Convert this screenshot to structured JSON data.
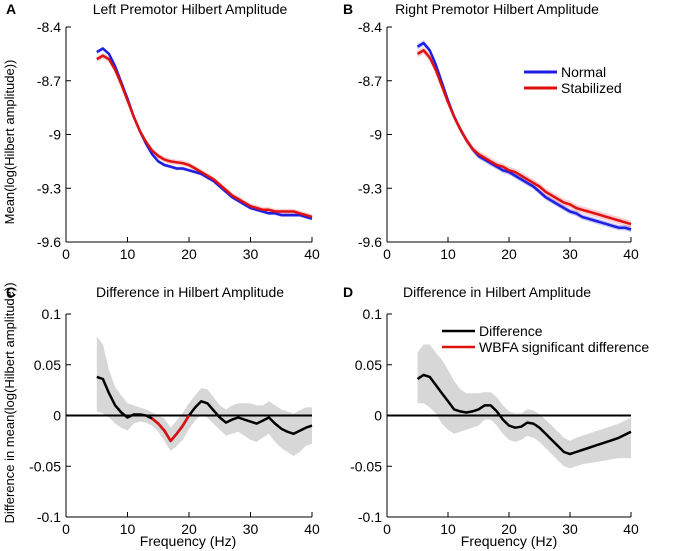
{
  "chart_data": [
    {
      "panel_letter": "A",
      "type": "line",
      "title": "Left Premotor Hilbert Amplitude",
      "xlabel": "",
      "ylabel": "Mean(log(Hilbert amplitude))",
      "xlim": [
        0,
        40
      ],
      "ylim": [
        -9.6,
        -8.4
      ],
      "xticks": [
        0,
        10,
        20,
        30,
        40
      ],
      "yticks": [
        -8.4,
        -8.7,
        -9,
        -9.3,
        -9.6
      ],
      "ytick_labels": [
        "-8.4",
        "-8.7",
        "-9",
        "-9.3",
        "-9.6"
      ],
      "series": [
        {
          "name": "Normal",
          "color": "#1f1fe0",
          "band": 0.01,
          "x": [
            5,
            6,
            7,
            8,
            9,
            10,
            11,
            12,
            13,
            14,
            15,
            16,
            17,
            18,
            19,
            20,
            21,
            22,
            23,
            24,
            25,
            26,
            27,
            28,
            29,
            30,
            31,
            32,
            33,
            34,
            35,
            36,
            37,
            38,
            39,
            40
          ],
          "y": [
            -8.54,
            -8.52,
            -8.55,
            -8.62,
            -8.71,
            -8.8,
            -8.9,
            -8.98,
            -9.05,
            -9.11,
            -9.15,
            -9.17,
            -9.18,
            -9.19,
            -9.19,
            -9.2,
            -9.21,
            -9.22,
            -9.24,
            -9.26,
            -9.29,
            -9.32,
            -9.35,
            -9.37,
            -9.39,
            -9.41,
            -9.42,
            -9.43,
            -9.44,
            -9.44,
            -9.45,
            -9.45,
            -9.45,
            -9.45,
            -9.46,
            -9.47
          ]
        },
        {
          "name": "Stabilized",
          "color": "#e01010",
          "band": 0.015,
          "x": [
            5,
            6,
            7,
            8,
            9,
            10,
            11,
            12,
            13,
            14,
            15,
            16,
            17,
            18,
            19,
            20,
            21,
            22,
            23,
            24,
            25,
            26,
            27,
            28,
            29,
            30,
            31,
            32,
            33,
            34,
            35,
            36,
            37,
            38,
            39,
            40
          ],
          "y": [
            -8.58,
            -8.56,
            -8.58,
            -8.64,
            -8.72,
            -8.81,
            -8.9,
            -8.98,
            -9.04,
            -9.09,
            -9.12,
            -9.14,
            -9.15,
            -9.155,
            -9.16,
            -9.17,
            -9.19,
            -9.21,
            -9.23,
            -9.25,
            -9.28,
            -9.31,
            -9.34,
            -9.36,
            -9.38,
            -9.4,
            -9.41,
            -9.42,
            -9.42,
            -9.43,
            -9.43,
            -9.43,
            -9.43,
            -9.44,
            -9.45,
            -9.46
          ]
        }
      ]
    },
    {
      "panel_letter": "B",
      "type": "line",
      "title": "Right Premotor Hilbert Amplitude",
      "xlabel": "",
      "ylabel": "",
      "xlim": [
        0,
        40
      ],
      "ylim": [
        -9.6,
        -8.4
      ],
      "xticks": [
        0,
        10,
        20,
        30,
        40
      ],
      "yticks": [
        -8.4,
        -8.7,
        -9,
        -9.3,
        -9.6
      ],
      "ytick_labels": [
        "-8.4",
        "-8.7",
        "-9",
        "-9.3",
        "-9.6"
      ],
      "legend_position": "top-right",
      "series": [
        {
          "name": "Normal",
          "color": "#1f1fe0",
          "band": 0.015,
          "x": [
            5,
            6,
            7,
            8,
            9,
            10,
            11,
            12,
            13,
            14,
            15,
            16,
            17,
            18,
            19,
            20,
            21,
            22,
            23,
            24,
            25,
            26,
            27,
            28,
            29,
            30,
            31,
            32,
            33,
            34,
            35,
            36,
            37,
            38,
            39,
            40
          ],
          "y": [
            -8.51,
            -8.49,
            -8.53,
            -8.61,
            -8.71,
            -8.81,
            -8.9,
            -8.97,
            -9.03,
            -9.08,
            -9.12,
            -9.14,
            -9.16,
            -9.18,
            -9.2,
            -9.21,
            -9.23,
            -9.25,
            -9.27,
            -9.29,
            -9.32,
            -9.35,
            -9.37,
            -9.39,
            -9.41,
            -9.43,
            -9.44,
            -9.46,
            -9.47,
            -9.48,
            -9.49,
            -9.5,
            -9.51,
            -9.52,
            -9.52,
            -9.53
          ]
        },
        {
          "name": "Stabilized",
          "color": "#e01010",
          "band": 0.02,
          "x": [
            5,
            6,
            7,
            8,
            9,
            10,
            11,
            12,
            13,
            14,
            15,
            16,
            17,
            18,
            19,
            20,
            21,
            22,
            23,
            24,
            25,
            26,
            27,
            28,
            29,
            30,
            31,
            32,
            33,
            34,
            35,
            36,
            37,
            38,
            39,
            40
          ],
          "y": [
            -8.55,
            -8.53,
            -8.57,
            -8.64,
            -8.73,
            -8.82,
            -8.9,
            -8.97,
            -9.03,
            -9.08,
            -9.11,
            -9.13,
            -9.15,
            -9.17,
            -9.18,
            -9.2,
            -9.21,
            -9.23,
            -9.25,
            -9.27,
            -9.29,
            -9.32,
            -9.34,
            -9.36,
            -9.38,
            -9.39,
            -9.41,
            -9.42,
            -9.43,
            -9.44,
            -9.45,
            -9.46,
            -9.47,
            -9.48,
            -9.49,
            -9.5
          ]
        }
      ]
    },
    {
      "panel_letter": "C",
      "type": "line",
      "title": "Difference in Hilbert Amplitude",
      "xlabel": "Frequency (Hz)",
      "ylabel": "Difference in mean(log(Hilbert amplitude))",
      "xlim": [
        0,
        40
      ],
      "ylim": [
        -0.1,
        0.1
      ],
      "xticks": [
        0,
        10,
        20,
        30,
        40
      ],
      "yticks": [
        0.1,
        0.05,
        0,
        -0.05,
        -0.1
      ],
      "ytick_labels": [
        "0.1",
        "0.05",
        "0",
        "-0.05",
        "-0.1"
      ],
      "zero_line": true,
      "series": [
        {
          "name": "Difference",
          "color": "#000000",
          "x": [
            5,
            6,
            7,
            8,
            9,
            10,
            11,
            12,
            13,
            14,
            15,
            16,
            17,
            18,
            19,
            20,
            21,
            22,
            23,
            24,
            25,
            26,
            27,
            28,
            29,
            30,
            31,
            32,
            33,
            34,
            35,
            36,
            37,
            38,
            39,
            40
          ],
          "y": [
            0.038,
            0.036,
            0.022,
            0.01,
            0.003,
            -0.002,
            0.001,
            0.001,
            0.0,
            -0.003,
            -0.008,
            -0.015,
            -0.025,
            -0.018,
            -0.01,
            0.0,
            0.008,
            0.014,
            0.012,
            0.005,
            -0.002,
            -0.007,
            -0.004,
            -0.002,
            -0.004,
            -0.006,
            -0.008,
            -0.005,
            -0.002,
            -0.008,
            -0.013,
            -0.016,
            -0.018,
            -0.015,
            -0.012,
            -0.01
          ],
          "upper": [
            0.078,
            0.07,
            0.045,
            0.028,
            0.02,
            0.012,
            0.01,
            0.008,
            0.006,
            0.003,
            0.0,
            -0.003,
            -0.012,
            -0.005,
            0.003,
            0.012,
            0.02,
            0.027,
            0.026,
            0.018,
            0.01,
            0.006,
            0.01,
            0.012,
            0.012,
            0.012,
            0.01,
            0.01,
            0.014,
            0.01,
            0.006,
            0.004,
            0.002,
            0.005,
            0.008,
            0.008
          ],
          "lower": [
            0.004,
            0.002,
            -0.002,
            -0.008,
            -0.012,
            -0.015,
            -0.008,
            -0.006,
            -0.007,
            -0.01,
            -0.016,
            -0.025,
            -0.035,
            -0.03,
            -0.024,
            -0.013,
            -0.005,
            0.001,
            -0.002,
            -0.008,
            -0.014,
            -0.02,
            -0.018,
            -0.016,
            -0.02,
            -0.024,
            -0.026,
            -0.022,
            -0.018,
            -0.026,
            -0.032,
            -0.036,
            -0.04,
            -0.036,
            -0.03,
            -0.028
          ]
        },
        {
          "name": "WBFA significant difference",
          "color": "#e01010",
          "segments": [
            {
              "x": [
                14,
                15,
                16
              ],
              "y": [
                -0.003,
                -0.008,
                -0.015
              ]
            },
            {
              "x": [
                16,
                17,
                18
              ],
              "y": [
                -0.015,
                -0.025,
                -0.018
              ]
            },
            {
              "x": [
                18,
                19,
                20
              ],
              "y": [
                -0.018,
                -0.01,
                0.0
              ]
            }
          ]
        }
      ]
    },
    {
      "panel_letter": "D",
      "type": "line",
      "title": "Difference in Hilbert Amplitude",
      "xlabel": "Frequency (Hz)",
      "ylabel": "",
      "xlim": [
        0,
        40
      ],
      "ylim": [
        -0.1,
        0.1
      ],
      "xticks": [
        0,
        10,
        20,
        30,
        40
      ],
      "yticks": [
        0.1,
        0.05,
        0,
        -0.05,
        -0.1
      ],
      "ytick_labels": [
        "0.1",
        "0.05",
        "0",
        "-0.05",
        "-0.1"
      ],
      "zero_line": true,
      "legend_position": "top-right",
      "series": [
        {
          "name": "Difference",
          "color": "#000000",
          "x": [
            5,
            6,
            7,
            8,
            9,
            10,
            11,
            12,
            13,
            14,
            15,
            16,
            17,
            18,
            19,
            20,
            21,
            22,
            23,
            24,
            25,
            26,
            27,
            28,
            29,
            30,
            31,
            32,
            33,
            34,
            35,
            36,
            37,
            38,
            39,
            40
          ],
          "y": [
            0.036,
            0.04,
            0.038,
            0.03,
            0.022,
            0.014,
            0.006,
            0.004,
            0.003,
            0.004,
            0.006,
            0.01,
            0.01,
            0.004,
            -0.004,
            -0.01,
            -0.012,
            -0.011,
            -0.007,
            -0.008,
            -0.012,
            -0.018,
            -0.024,
            -0.03,
            -0.036,
            -0.038,
            -0.036,
            -0.034,
            -0.032,
            -0.03,
            -0.028,
            -0.026,
            -0.024,
            -0.022,
            -0.019,
            -0.016
          ],
          "upper": [
            0.062,
            0.07,
            0.07,
            0.062,
            0.055,
            0.045,
            0.034,
            0.026,
            0.022,
            0.022,
            0.022,
            0.023,
            0.023,
            0.018,
            0.01,
            0.004,
            0.002,
            0.002,
            0.006,
            0.005,
            0.001,
            -0.004,
            -0.01,
            -0.016,
            -0.022,
            -0.025,
            -0.022,
            -0.02,
            -0.018,
            -0.016,
            -0.014,
            -0.012,
            -0.01,
            -0.008,
            -0.005,
            -0.002
          ],
          "lower": [
            0.012,
            0.012,
            0.008,
            0.002,
            -0.008,
            -0.014,
            -0.018,
            -0.016,
            -0.014,
            -0.012,
            -0.01,
            -0.004,
            -0.004,
            -0.01,
            -0.018,
            -0.024,
            -0.026,
            -0.024,
            -0.02,
            -0.022,
            -0.026,
            -0.032,
            -0.038,
            -0.044,
            -0.05,
            -0.052,
            -0.05,
            -0.048,
            -0.047,
            -0.046,
            -0.045,
            -0.044,
            -0.043,
            -0.042,
            -0.042,
            -0.042
          ]
        }
      ]
    }
  ],
  "legends": {
    "top": {
      "normal_label": "Normal",
      "stabilized_label": "Stabilized"
    },
    "bottom": {
      "difference_label": "Difference",
      "wbfa_label": "WBFA significant difference"
    }
  }
}
